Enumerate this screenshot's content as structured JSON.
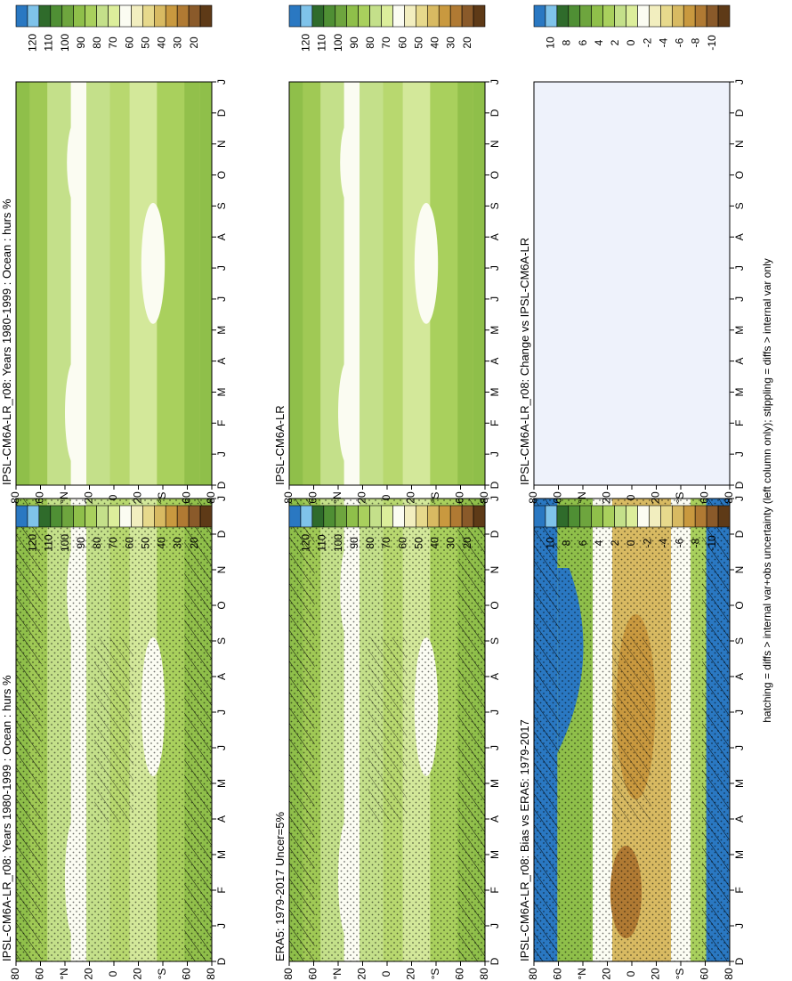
{
  "footnote": "hatching = diffs > internal var+obs uncertainty (left column only); stippling = diffs > internal var only",
  "palettes": {
    "abs": [
      "#2a78c2",
      "#7fc3ea",
      "#2f6b2b",
      "#4f8f34",
      "#6ea53e",
      "#8fbf4a",
      "#a9d05d",
      "#c4e08a",
      "#dcee9b",
      "#fbfcf2",
      "#f2eebf",
      "#e7d98c",
      "#d8ba62",
      "#c9993f",
      "#b07a33",
      "#8a5a2a",
      "#5e3a17"
    ],
    "diff": [
      "#2a78c2",
      "#7fc3ea",
      "#2f6b2b",
      "#4f8f34",
      "#6ea53e",
      "#8fbf4a",
      "#a9d05d",
      "#c4e08a",
      "#dcee9b",
      "#fbfcf2",
      "#f2eebf",
      "#e7d98c",
      "#d8ba62",
      "#c9993f",
      "#b07a33",
      "#8a5a2a",
      "#5e3a17"
    ]
  },
  "chart_data": [
    {
      "type": "heatmap",
      "name": "model-left",
      "title": "IPSL-CM6A-LR_r08: Years 1980-1999 : Ocean : hurs %",
      "x": [
        "D",
        "J",
        "F",
        "M",
        "A",
        "M",
        "J",
        "J",
        "A",
        "S",
        "O",
        "N",
        "D",
        "J"
      ],
      "y": [
        "80",
        "60",
        "°N",
        "20",
        "0",
        "20",
        "°S",
        "60",
        "80"
      ],
      "colorbar_ticks": [
        "120",
        "110",
        "100",
        "90",
        "80",
        "70",
        "60",
        "50",
        "40",
        "30",
        "20"
      ],
      "hatching": true,
      "stippling": true
    },
    {
      "type": "heatmap",
      "name": "model-right",
      "title": "IPSL-CM6A-LR_r08: Years 1980-1999 : Ocean : hurs %",
      "x": [
        "D",
        "J",
        "F",
        "M",
        "A",
        "M",
        "J",
        "J",
        "A",
        "S",
        "O",
        "N",
        "D",
        "J"
      ],
      "y": [
        "80",
        "60",
        "°N",
        "20",
        "0",
        "20",
        "°S",
        "60",
        "80"
      ],
      "colorbar_ticks": [
        "120",
        "110",
        "100",
        "90",
        "80",
        "70",
        "60",
        "50",
        "40",
        "30",
        "20"
      ],
      "hatching": false,
      "stippling": false
    },
    {
      "type": "heatmap",
      "name": "obs-left",
      "title": "ERA5: 1979-2017 Uncer=5%",
      "x": [
        "D",
        "J",
        "F",
        "M",
        "A",
        "M",
        "J",
        "J",
        "A",
        "S",
        "O",
        "N",
        "D",
        "J"
      ],
      "y": [
        "80",
        "60",
        "°N",
        "20",
        "0",
        "20",
        "°S",
        "60",
        "80"
      ],
      "colorbar_ticks": [
        "120",
        "110",
        "100",
        "90",
        "80",
        "70",
        "60",
        "50",
        "40",
        "30",
        "20"
      ],
      "hatching": true,
      "stippling": true
    },
    {
      "type": "heatmap",
      "name": "ref-right",
      "title": "IPSL-CM6A-LR",
      "x": [
        "D",
        "J",
        "F",
        "M",
        "A",
        "M",
        "J",
        "J",
        "A",
        "S",
        "O",
        "N",
        "D",
        "J"
      ],
      "y": [
        "80",
        "60",
        "°N",
        "20",
        "0",
        "20",
        "°S",
        "60",
        "80"
      ],
      "colorbar_ticks": [
        "120",
        "110",
        "100",
        "90",
        "80",
        "70",
        "60",
        "50",
        "40",
        "30",
        "20"
      ],
      "hatching": false,
      "stippling": false
    },
    {
      "type": "heatmap",
      "name": "bias-left",
      "title": "IPSL-CM6A-LR_r08: Bias vs ERA5: 1979-2017",
      "x": [
        "D",
        "J",
        "F",
        "M",
        "A",
        "M",
        "J",
        "J",
        "A",
        "S",
        "O",
        "N",
        "D",
        "J"
      ],
      "y": [
        "80",
        "60",
        "°N",
        "20",
        "0",
        "20",
        "°S",
        "60",
        "80"
      ],
      "colorbar_ticks": [
        "10",
        "8",
        "6",
        "4",
        "2",
        "0",
        "-2",
        "-4",
        "-6",
        "-8",
        "-10"
      ],
      "hatching": true,
      "stippling": true
    },
    {
      "type": "heatmap",
      "name": "change-right",
      "title": "IPSL-CM6A-LR_r08: Change vs IPSL-CM6A-LR",
      "x": [
        "D",
        "J",
        "F",
        "M",
        "A",
        "M",
        "J",
        "J",
        "A",
        "S",
        "O",
        "N",
        "D",
        "J"
      ],
      "y": [
        "80",
        "60",
        "°N",
        "20",
        "0",
        "20",
        "°S",
        "60",
        "80"
      ],
      "colorbar_ticks": [
        "10",
        "8",
        "6",
        "4",
        "2",
        "0",
        "-2",
        "-4",
        "-6",
        "-8",
        "-10"
      ],
      "hatching": false,
      "stippling": false
    }
  ]
}
